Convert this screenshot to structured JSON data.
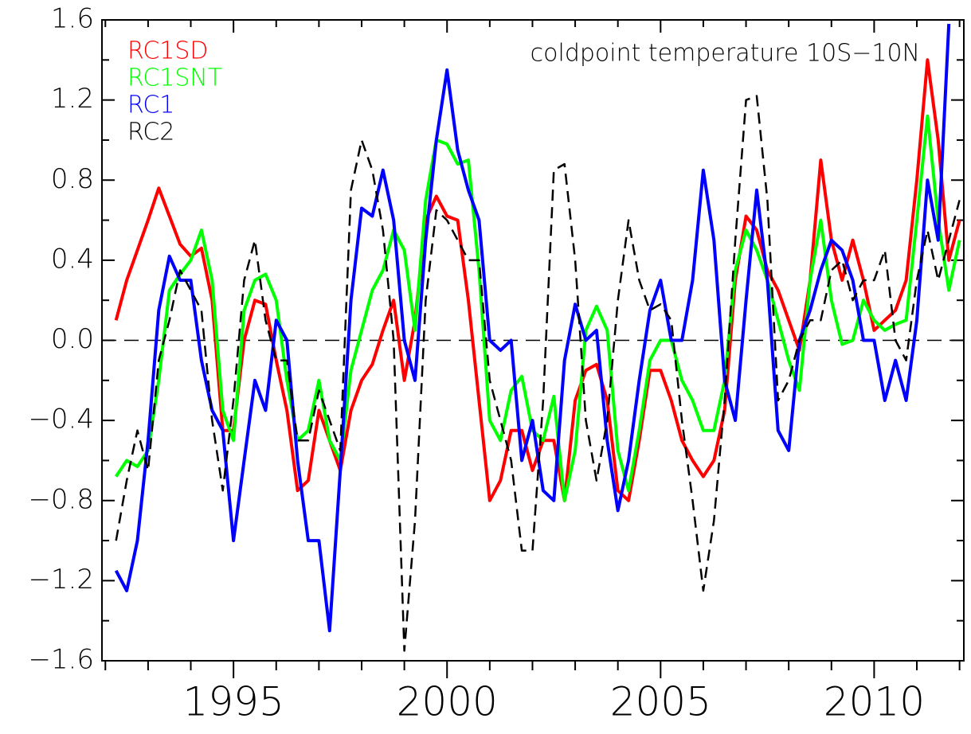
{
  "chart_data": {
    "type": "line",
    "annotation": "coldpoint temperature 10S−10N",
    "x": [
      1992.25,
      1992.5,
      1992.75,
      1993.0,
      1993.25,
      1993.5,
      1993.75,
      1994.0,
      1994.25,
      1994.5,
      1994.75,
      1995.0,
      1995.25,
      1995.5,
      1995.75,
      1996.0,
      1996.25,
      1996.5,
      1996.75,
      1997.0,
      1997.25,
      1997.5,
      1997.75,
      1998.0,
      1998.25,
      1998.5,
      1998.75,
      1999.0,
      1999.25,
      1999.5,
      1999.75,
      2000.0,
      2000.25,
      2000.5,
      2000.75,
      2001.0,
      2001.25,
      2001.5,
      2001.75,
      2002.0,
      2002.25,
      2002.5,
      2002.75,
      2003.0,
      2003.25,
      2003.5,
      2003.75,
      2004.0,
      2004.25,
      2004.5,
      2004.75,
      2005.0,
      2005.25,
      2005.5,
      2005.75,
      2006.0,
      2006.25,
      2006.5,
      2006.75,
      2007.0,
      2007.25,
      2007.5,
      2007.75,
      2008.0,
      2008.25,
      2008.5,
      2008.75,
      2009.0,
      2009.25,
      2009.5,
      2009.75,
      2010.0,
      2010.25,
      2010.5,
      2010.75,
      2011.0,
      2011.25,
      2011.5,
      2011.75,
      2012.0
    ],
    "series": [
      {
        "name": "RC1SD",
        "color": "#ff0000",
        "dashed": false,
        "values": [
          0.1,
          0.3,
          0.45,
          0.6,
          0.76,
          0.62,
          0.48,
          0.42,
          0.46,
          0.2,
          -0.45,
          -0.45,
          0.0,
          0.2,
          0.18,
          -0.1,
          -0.35,
          -0.75,
          -0.7,
          -0.35,
          -0.5,
          -0.65,
          -0.35,
          -0.2,
          -0.12,
          0.05,
          0.2,
          -0.2,
          0.1,
          0.6,
          0.72,
          0.62,
          0.6,
          0.2,
          -0.3,
          -0.8,
          -0.7,
          -0.45,
          -0.45,
          -0.65,
          -0.5,
          -0.5,
          -0.8,
          -0.3,
          -0.15,
          -0.12,
          -0.3,
          -0.75,
          -0.8,
          -0.5,
          -0.15,
          -0.15,
          -0.3,
          -0.5,
          -0.6,
          -0.68,
          -0.6,
          -0.35,
          0.3,
          0.62,
          0.55,
          0.35,
          0.25,
          0.1,
          -0.05,
          0.3,
          0.9,
          0.5,
          0.3,
          0.5,
          0.3,
          0.05,
          0.1,
          0.15,
          0.3,
          0.8,
          1.4,
          1.0,
          0.4,
          0.6
        ]
      },
      {
        "name": "RC1SNT",
        "color": "#00ff00",
        "dashed": false,
        "values": [
          -0.68,
          -0.6,
          -0.63,
          -0.55,
          -0.2,
          0.25,
          0.33,
          0.4,
          0.55,
          0.3,
          -0.35,
          -0.5,
          0.15,
          0.3,
          0.33,
          0.2,
          -0.2,
          -0.5,
          -0.45,
          -0.2,
          -0.5,
          -0.6,
          -0.15,
          0.05,
          0.25,
          0.35,
          0.55,
          0.45,
          0.05,
          0.7,
          1.0,
          0.98,
          0.88,
          0.9,
          0.35,
          -0.4,
          -0.5,
          -0.25,
          -0.18,
          -0.45,
          -0.5,
          -0.28,
          -0.8,
          -0.55,
          0.05,
          0.17,
          0.05,
          -0.55,
          -0.75,
          -0.45,
          -0.1,
          0.0,
          0.0,
          -0.2,
          -0.3,
          -0.45,
          -0.45,
          -0.2,
          0.35,
          0.55,
          0.45,
          0.3,
          0.1,
          -0.1,
          -0.25,
          0.3,
          0.6,
          0.2,
          -0.02,
          0.0,
          0.2,
          0.1,
          0.05,
          0.08,
          0.1,
          0.6,
          1.12,
          0.6,
          0.25,
          0.5
        ]
      },
      {
        "name": "RC1",
        "color": "#0000ff",
        "dashed": false,
        "values": [
          -1.15,
          -1.25,
          -1.0,
          -0.5,
          0.15,
          0.42,
          0.3,
          0.3,
          -0.1,
          -0.35,
          -0.45,
          -1.0,
          -0.6,
          -0.2,
          -0.35,
          0.1,
          0.0,
          -0.6,
          -1.0,
          -1.0,
          -1.45,
          -0.65,
          0.2,
          0.66,
          0.62,
          0.85,
          0.6,
          0.0,
          -0.2,
          0.5,
          1.0,
          1.35,
          0.95,
          0.75,
          0.6,
          0.0,
          -0.05,
          0.0,
          -0.6,
          -0.4,
          -0.75,
          -0.8,
          -0.1,
          0.18,
          0.0,
          0.05,
          -0.5,
          -0.85,
          -0.6,
          -0.2,
          0.15,
          0.3,
          0.0,
          0.0,
          0.3,
          0.85,
          0.5,
          -0.2,
          -0.4,
          0.2,
          0.75,
          0.3,
          -0.45,
          -0.55,
          0.0,
          0.15,
          0.35,
          0.5,
          0.45,
          0.3,
          0.0,
          0.0,
          -0.3,
          -0.1,
          -0.3,
          0.1,
          0.8,
          0.5,
          1.58,
          null
        ]
      },
      {
        "name": "RC2",
        "color": "#000000",
        "dashed": true,
        "values": [
          -1.0,
          -0.7,
          -0.45,
          -0.65,
          -0.1,
          0.1,
          0.35,
          0.25,
          0.15,
          -0.4,
          -0.75,
          -0.3,
          0.3,
          0.5,
          0.1,
          -0.1,
          -0.1,
          -0.5,
          -0.5,
          -0.25,
          -0.4,
          -0.55,
          0.75,
          1.0,
          0.85,
          0.55,
          0.0,
          -1.55,
          -0.9,
          0.2,
          0.65,
          0.6,
          0.5,
          0.4,
          0.4,
          -0.2,
          -0.4,
          -0.6,
          -1.05,
          -1.05,
          -0.3,
          0.85,
          0.88,
          0.4,
          -0.4,
          -0.7,
          -0.4,
          0.2,
          0.6,
          0.3,
          0.15,
          0.18,
          0.1,
          -0.4,
          -0.8,
          -1.25,
          -0.9,
          -0.3,
          0.5,
          1.2,
          1.22,
          0.7,
          -0.3,
          -0.2,
          0.0,
          0.1,
          0.1,
          0.35,
          0.4,
          0.2,
          0.3,
          0.3,
          0.45,
          0.0,
          -0.1,
          0.3,
          0.55,
          0.3,
          0.5,
          0.7
        ]
      }
    ],
    "xlim": [
      1991.92,
      2012.1
    ],
    "xticks": [
      1995,
      2000,
      2005,
      2010
    ],
    "xminorticks": [
      1992,
      1993,
      1994,
      1996,
      1997,
      1998,
      1999,
      2001,
      2002,
      2003,
      2004,
      2006,
      2007,
      2008,
      2009,
      2011,
      2012
    ],
    "ylim": [
      -1.6,
      1.6
    ],
    "yticks": [
      {
        "value": -1.6,
        "label": "−1.6"
      },
      {
        "value": -1.2,
        "label": "−1.2"
      },
      {
        "value": -0.8,
        "label": "−0.8"
      },
      {
        "value": -0.4,
        "label": "−0.4"
      },
      {
        "value": 0,
        "label": "0.0"
      },
      0.4,
      0.8,
      1.2,
      1.6
    ],
    "yminorticks": [
      -1.4,
      -1.0,
      -0.6,
      -0.2,
      0.2,
      0.6,
      1.0,
      1.4
    ]
  }
}
